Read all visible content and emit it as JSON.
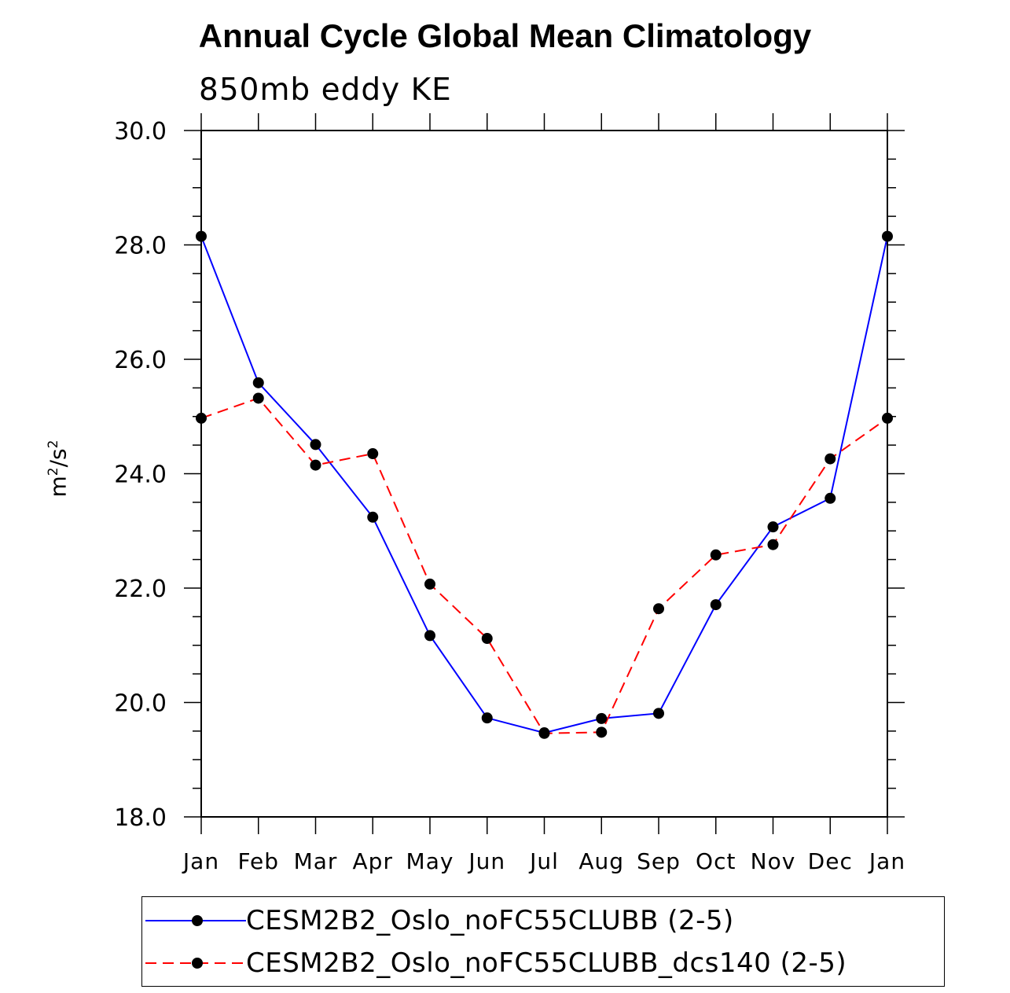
{
  "chart_data": {
    "type": "line",
    "title": "Annual Cycle Global Mean Climatology",
    "subtitle": "850mb eddy KE",
    "ylabel_base": "m",
    "ylabel_exp": "2",
    "ylabel_sep": "/s",
    "ylabel_exp2": "2",
    "xlabel": "",
    "categories": [
      "Jan",
      "Feb",
      "Mar",
      "Apr",
      "May",
      "Jun",
      "Jul",
      "Aug",
      "Sep",
      "Oct",
      "Nov",
      "Dec",
      "Jan"
    ],
    "ylim": [
      18.0,
      30.0
    ],
    "yticks": [
      "18.0",
      "20.0",
      "22.0",
      "24.0",
      "26.0",
      "28.0",
      "30.0"
    ],
    "series": [
      {
        "name": "CESM2B2_Oslo_noFC55CLUBB (2-5)",
        "color": "#0000ff",
        "dash": "solid",
        "values": [
          28.15,
          25.59,
          24.51,
          23.24,
          21.17,
          19.73,
          19.47,
          19.72,
          19.81,
          21.71,
          23.07,
          23.57,
          28.15
        ]
      },
      {
        "name": "CESM2B2_Oslo_noFC55CLUBB_dcs140 (2-5)",
        "color": "#ff0000",
        "dash": "dashed",
        "values": [
          24.97,
          25.32,
          24.15,
          24.35,
          22.07,
          21.12,
          19.46,
          19.48,
          21.64,
          22.58,
          22.76,
          24.26,
          24.97
        ]
      }
    ],
    "marker_color": "#000000"
  }
}
